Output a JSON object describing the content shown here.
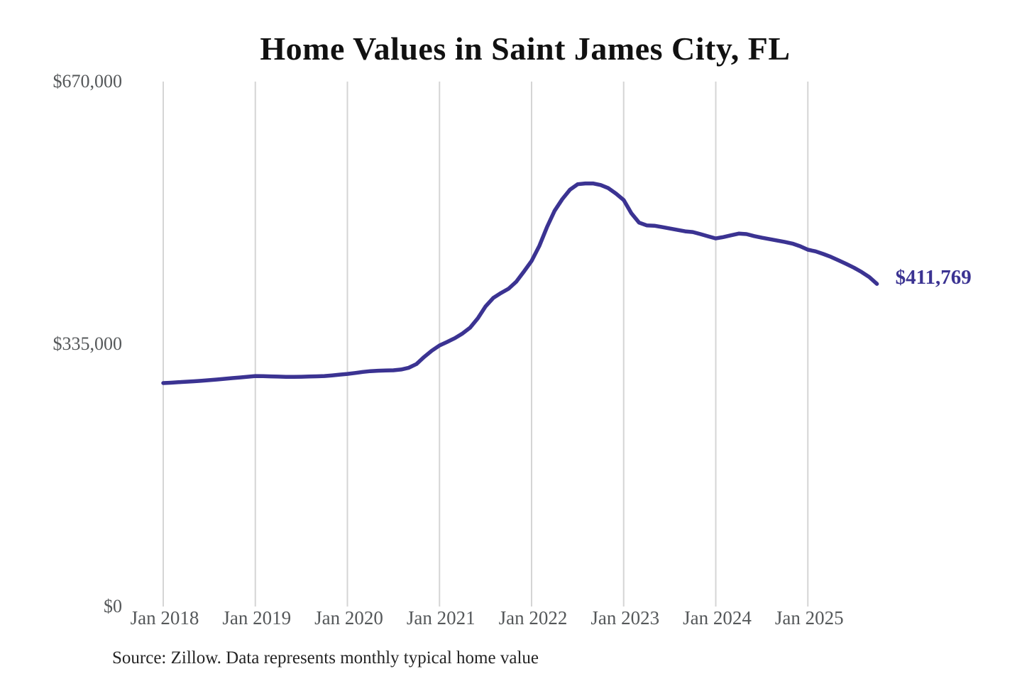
{
  "title": "Home Values in Saint James City, FL",
  "latest_value_label": "$411,769",
  "source_note": "Source: Zillow. Data represents monthly typical home value",
  "colors": {
    "line": "#3b3392",
    "latest_value_text": "#3b3392",
    "grid": "#d5d5d5",
    "axis_text": "#55585a",
    "title_text": "#111111",
    "source_text": "#252525",
    "background": "#ffffff"
  },
  "chart_data": {
    "type": "line",
    "title": "Home Values in Saint James City, FL",
    "series_name": "Monthly typical home value (USD)",
    "interval": "monthly",
    "start_month": "2018-01",
    "end_month": "2025-10",
    "ylim": [
      0,
      670000
    ],
    "grid": "vertical-only",
    "legend": "none",
    "y_ticks": [
      {
        "label": "$0",
        "value": 0
      },
      {
        "label": "$335,000",
        "value": 335000
      },
      {
        "label": "$670,000",
        "value": 670000
      }
    ],
    "x_tick_labels": [
      "Jan 2018",
      "Jan 2019",
      "Jan 2020",
      "Jan 2021",
      "Jan 2022",
      "Jan 2023",
      "Jan 2024",
      "Jan 2025"
    ],
    "values": [
      285200,
      285700,
      286300,
      286900,
      287500,
      288200,
      288900,
      289700,
      290600,
      291500,
      292400,
      293300,
      294200,
      294000,
      293700,
      293400,
      293200,
      293200,
      293300,
      293500,
      293800,
      294200,
      295000,
      296000,
      296900,
      298100,
      299400,
      300400,
      301000,
      301300,
      301500,
      302500,
      304800,
      309500,
      318500,
      326500,
      333200,
      337700,
      342500,
      348500,
      356000,
      368000,
      383000,
      393800,
      400100,
      405600,
      414600,
      427500,
      441000,
      460000,
      484000,
      505000,
      520000,
      532000,
      539000,
      540000,
      540000,
      538000,
      534000,
      527000,
      518800,
      502000,
      490000,
      486500,
      486000,
      484300,
      482500,
      480700,
      478900,
      478000,
      475300,
      472500,
      469800,
      471500,
      473800,
      476000,
      475300,
      472800,
      470700,
      468900,
      467100,
      465300,
      463200,
      459900,
      455400,
      453300,
      450000,
      446300,
      441800,
      437300,
      432500,
      427000,
      420500,
      411769
    ],
    "latest_value": 411769,
    "annotations": [
      {
        "text": "$411,769",
        "attached_to": "last-point"
      }
    ]
  }
}
